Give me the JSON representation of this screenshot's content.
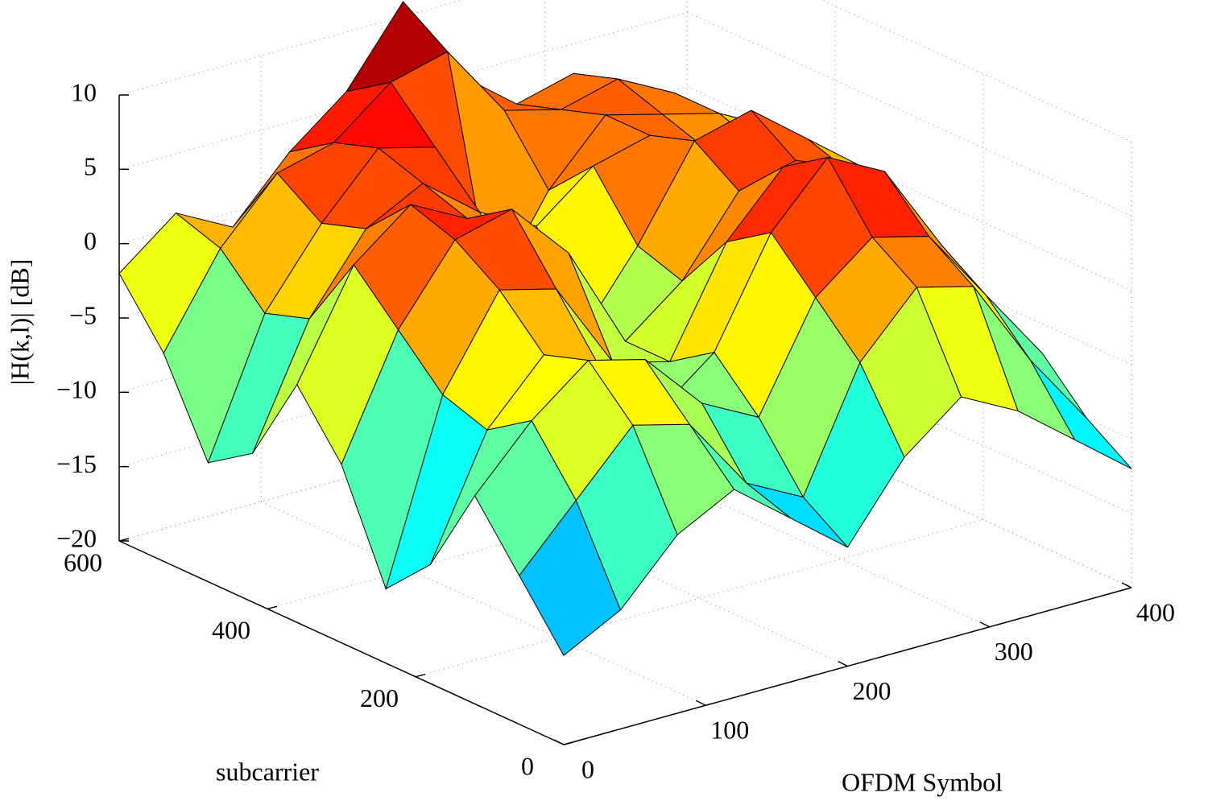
{
  "chart_data": {
    "type": "surface",
    "xlabel": "OFDM Symbol",
    "ylabel": "subcarrier",
    "zlabel": "|H(k,l)| [dB]",
    "colormap": "jet",
    "grid": true,
    "xlim": [
      0,
      400
    ],
    "ylim": [
      0,
      600
    ],
    "zlim": [
      -20,
      10
    ],
    "xticks": [
      0,
      100,
      200,
      300,
      400
    ],
    "yticks": [
      0,
      200,
      400,
      600
    ],
    "zticks": [
      {
        "value": -20,
        "label": "−20"
      },
      {
        "value": -15,
        "label": "−15"
      },
      {
        "value": -10,
        "label": "−10"
      },
      {
        "value": -5,
        "label": "−5"
      },
      0,
      5,
      10
    ],
    "x": [
      0,
      40,
      80,
      120,
      160,
      200,
      240,
      280,
      320,
      360,
      400
    ],
    "y": [
      0,
      60,
      120,
      180,
      240,
      300,
      360,
      420,
      480,
      540,
      600
    ],
    "z": [
      [
        -14,
        -12,
        -8,
        -6,
        -9,
        -12,
        -7,
        -4,
        -6,
        -9,
        -12
      ],
      [
        -10,
        -6,
        -2,
        -3,
        -8,
        -10,
        -2,
        2,
        1,
        -5,
        -10
      ],
      [
        -6,
        -2,
        1,
        0,
        -4,
        -6,
        1,
        4,
        3,
        -2,
        -7
      ],
      [
        -12,
        -4,
        0,
        -2,
        -6,
        -3,
        4,
        8,
        6,
        0,
        -6
      ],
      [
        -15,
        -3,
        3,
        2,
        -4,
        -5,
        2,
        6,
        5,
        -1,
        -4
      ],
      [
        -8,
        0,
        5,
        6,
        2,
        -5,
        -2,
        3,
        4,
        2,
        -2
      ],
      [
        -4,
        3,
        6,
        4,
        -2,
        -6,
        -1,
        5,
        6,
        3,
        0
      ],
      [
        -10,
        -2,
        3,
        5,
        2,
        0,
        3,
        4,
        2,
        1,
        -2
      ],
      [
        -12,
        -3,
        2,
        6,
        5,
        -6,
        0,
        4,
        3,
        2,
        0
      ],
      [
        -6,
        0,
        4,
        5,
        8,
        9,
        4,
        3,
        4,
        2,
        -1
      ],
      [
        -2,
        1,
        -1,
        3,
        6,
        11,
        5,
        2,
        3,
        1,
        -1
      ]
    ]
  }
}
